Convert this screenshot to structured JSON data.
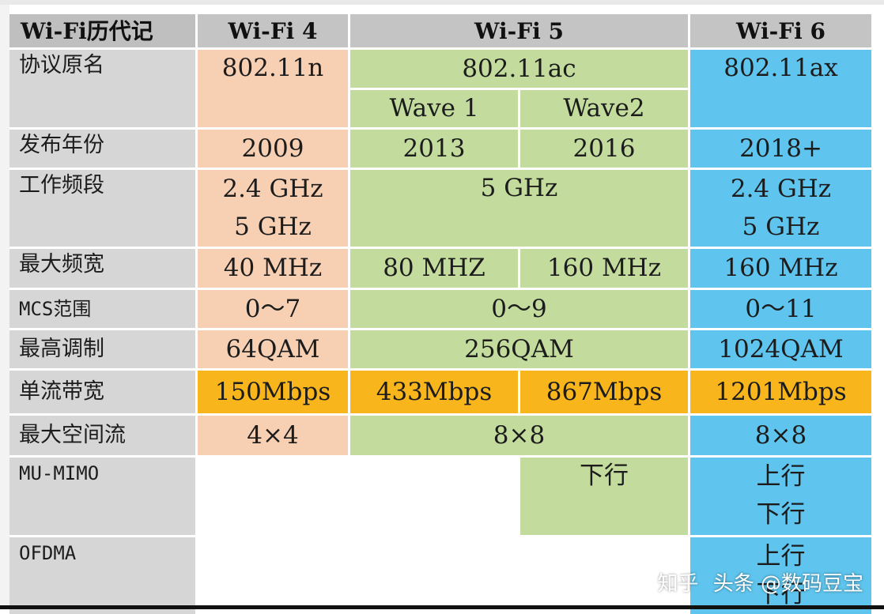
{
  "headers": {
    "row_label": "Wi-Fi历代记",
    "wifi4": "Wi-Fi 4",
    "wifi5": "Wi-Fi 5",
    "wifi6": "Wi-Fi 6"
  },
  "rows": {
    "protocol": {
      "label": "协议原名",
      "wifi4": "802.11n",
      "wifi5": "802.11ac",
      "wifi5_wave1": "Wave 1",
      "wifi5_wave2": "Wave2",
      "wifi6": "802.11ax"
    },
    "year": {
      "label": "发布年份",
      "wifi4": "2009",
      "wifi5_wave1": "2013",
      "wifi5_wave2": "2016",
      "wifi6": "2018+"
    },
    "band": {
      "label": "工作频段",
      "wifi4_line1": "2.4 GHz",
      "wifi4_line2": "5 GHz",
      "wifi5": "5 GHz",
      "wifi6_line1": "2.4 GHz",
      "wifi6_line2": "5 GHz"
    },
    "bandwidth": {
      "label": "最大频宽",
      "wifi4": "40 MHz",
      "wifi5_wave1": "80 MHZ",
      "wifi5_wave2": "160 MHz",
      "wifi6": "160 MHz"
    },
    "mcs": {
      "label": "MCS范围",
      "wifi4": "0～7",
      "wifi5": "0～9",
      "wifi6": "0～11"
    },
    "modulation": {
      "label": "最高调制",
      "wifi4": "64QAM",
      "wifi5": "256QAM",
      "wifi6": "1024QAM"
    },
    "stream_rate": {
      "label": "单流带宽",
      "wifi4": "150Mbps",
      "wifi5_wave1": "433Mbps",
      "wifi5_wave2": "867Mbps",
      "wifi6": "1201Mbps"
    },
    "spatial_streams": {
      "label": "最大空间流",
      "wifi4": "4×4",
      "wifi5": "8×8",
      "wifi6": "8×8"
    },
    "mu_mimo": {
      "label": "MU-MIMO",
      "wifi5_wave2": "下行",
      "wifi6_line1": "上行",
      "wifi6_line2": "下行"
    },
    "ofdma": {
      "label": "OFDMA",
      "wifi6_line1": "上行",
      "wifi6_line2": "下行"
    }
  },
  "watermark": {
    "site": "知乎",
    "credit": "头条 @数码豆宝"
  },
  "colors": {
    "wifi4": "#f7cfb3",
    "wifi5": "#c3dc9d",
    "wifi6": "#5fc5ee",
    "rate_highlight": "#f8b61c",
    "label": "#d6d6d6",
    "header": "#c4c4c4"
  }
}
